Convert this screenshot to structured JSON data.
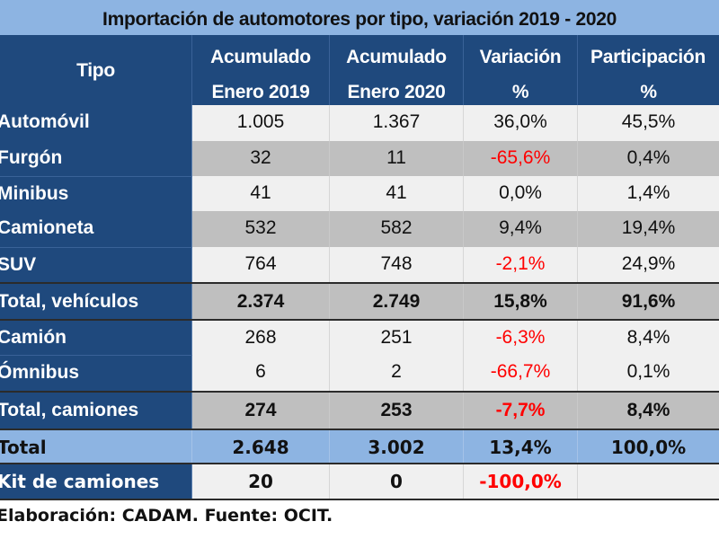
{
  "title": "Importación de automotores por tipo, variación 2019 - 2020",
  "colors": {
    "header_bg": "#1f497d",
    "title_bg": "#8db4e2",
    "total_bg": "#8db4e2",
    "band_gray": "#bfbfbf",
    "band_light": "#f0f0f0",
    "negative": "#ff0000"
  },
  "columns": [
    {
      "line1": "Tipo",
      "line2": ""
    },
    {
      "line1": "Acumulado",
      "line2": "Enero 2019"
    },
    {
      "line1": "Acumulado",
      "line2": "Enero 2020"
    },
    {
      "line1": "Variación",
      "line2": "%"
    },
    {
      "line1": "Participación",
      "line2": "%"
    }
  ],
  "rows": [
    {
      "tipo": "Automóvil",
      "ene2019": "1.005",
      "ene2020": "1.367",
      "variacion": "36,0%",
      "participacion": "45,5%"
    },
    {
      "tipo": "Furgón",
      "ene2019": "32",
      "ene2020": "11",
      "variacion": "-65,6%",
      "participacion": "0,4%"
    },
    {
      "tipo": "Minibus",
      "ene2019": "41",
      "ene2020": "41",
      "variacion": "0,0%",
      "participacion": "1,4%"
    },
    {
      "tipo": "Camioneta",
      "ene2019": "532",
      "ene2020": "582",
      "variacion": "9,4%",
      "participacion": "19,4%"
    },
    {
      "tipo": "SUV",
      "ene2019": "764",
      "ene2020": "748",
      "variacion": "-2,1%",
      "participacion": "24,9%"
    },
    {
      "tipo": "Total, vehículos",
      "ene2019": "2.374",
      "ene2020": "2.749",
      "variacion": "15,8%",
      "participacion": "91,6%"
    },
    {
      "tipo": "Camión",
      "ene2019": "268",
      "ene2020": "251",
      "variacion": "-6,3%",
      "participacion": "8,4%"
    },
    {
      "tipo": "Ómnibus",
      "ene2019": "6",
      "ene2020": "2",
      "variacion": "-66,7%",
      "participacion": "0,1%"
    },
    {
      "tipo": "Total, camiones",
      "ene2019": "274",
      "ene2020": "253",
      "variacion": "-7,7%",
      "participacion": "8,4%"
    },
    {
      "tipo": "Total",
      "ene2019": "2.648",
      "ene2020": "3.002",
      "variacion": "13,4%",
      "participacion": "100,0%"
    },
    {
      "tipo": "Kit de camiones",
      "ene2019": "20",
      "ene2020": "0",
      "variacion": "-100,0%",
      "participacion": ""
    }
  ],
  "footer": "Elaboración: CADAM.  Fuente: OCIT."
}
